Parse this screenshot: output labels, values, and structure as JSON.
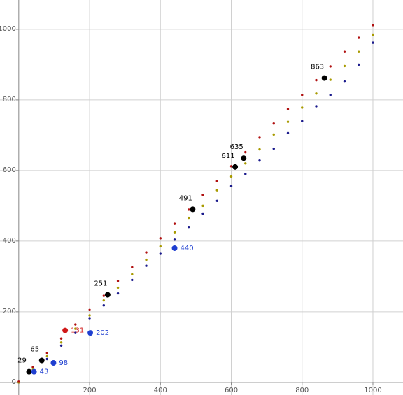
{
  "chart_data": {
    "type": "scatter",
    "xlim": [
      -53,
      1085
    ],
    "ylim": [
      -36,
      1083
    ],
    "xticks": [
      200,
      400,
      600,
      800,
      1000
    ],
    "yticks": [
      0,
      200,
      400,
      600,
      800,
      1000
    ],
    "grid": true,
    "series": [
      {
        "color": "#1a1a8c",
        "x": [
          0,
          40,
          80,
          120,
          160,
          200,
          240,
          280,
          320,
          360,
          400,
          440,
          480,
          520,
          560,
          600,
          640,
          680,
          720,
          760,
          800,
          840,
          880,
          920,
          960,
          1000
        ],
        "y": [
          0,
          30,
          66,
          104,
          140,
          180,
          218,
          252,
          290,
          330,
          364,
          404,
          440,
          478,
          514,
          556,
          590,
          628,
          662,
          706,
          740,
          782,
          814,
          852,
          900,
          962
        ]
      },
      {
        "color": "#a89a00",
        "x": [
          0,
          40,
          80,
          120,
          160,
          200,
          240,
          280,
          320,
          360,
          400,
          440,
          480,
          520,
          560,
          600,
          640,
          680,
          720,
          760,
          800,
          840,
          880,
          920,
          960,
          1000
        ],
        "y": [
          0,
          36,
          74,
          113,
          152,
          190,
          232,
          268,
          306,
          347,
          385,
          425,
          466,
          500,
          544,
          583,
          620,
          660,
          702,
          738,
          778,
          818,
          857,
          896,
          936,
          985
        ]
      },
      {
        "color": "#b01010",
        "x": [
          0,
          40,
          80,
          120,
          160,
          200,
          240,
          280,
          320,
          360,
          400,
          440,
          480,
          520,
          560,
          600,
          640,
          680,
          720,
          760,
          800,
          840,
          880,
          920,
          960,
          1000
        ],
        "y": [
          2,
          43,
          83,
          124,
          164,
          205,
          245,
          287,
          326,
          368,
          408,
          449,
          489,
          531,
          570,
          612,
          652,
          693,
          733,
          774,
          814,
          856,
          895,
          936,
          976,
          1012
        ]
      }
    ],
    "annotations": [
      {
        "x": 29,
        "y": 30,
        "label": "29",
        "color": "#000000"
      },
      {
        "x": 65,
        "y": 62,
        "label": "65",
        "color": "#000000"
      },
      {
        "x": 251,
        "y": 248,
        "label": "251",
        "color": "#000000"
      },
      {
        "x": 491,
        "y": 490,
        "label": "491",
        "color": "#000000"
      },
      {
        "x": 611,
        "y": 610,
        "label": "611",
        "color": "#000000"
      },
      {
        "x": 635,
        "y": 635,
        "label": "635",
        "color": "#000000"
      },
      {
        "x": 863,
        "y": 862,
        "label": "863",
        "color": "#000000"
      },
      {
        "x": 131,
        "y": 147,
        "label": "131",
        "color": "#d01818"
      },
      {
        "x": 98,
        "y": 55,
        "label": "98",
        "color": "#1f3fd0"
      },
      {
        "x": 43,
        "y": 30,
        "label": "43",
        "color": "#1f3fd0"
      },
      {
        "x": 202,
        "y": 140,
        "label": "202",
        "color": "#1f3fd0"
      },
      {
        "x": 440,
        "y": 380,
        "label": "440",
        "color": "#1f3fd0"
      }
    ]
  }
}
